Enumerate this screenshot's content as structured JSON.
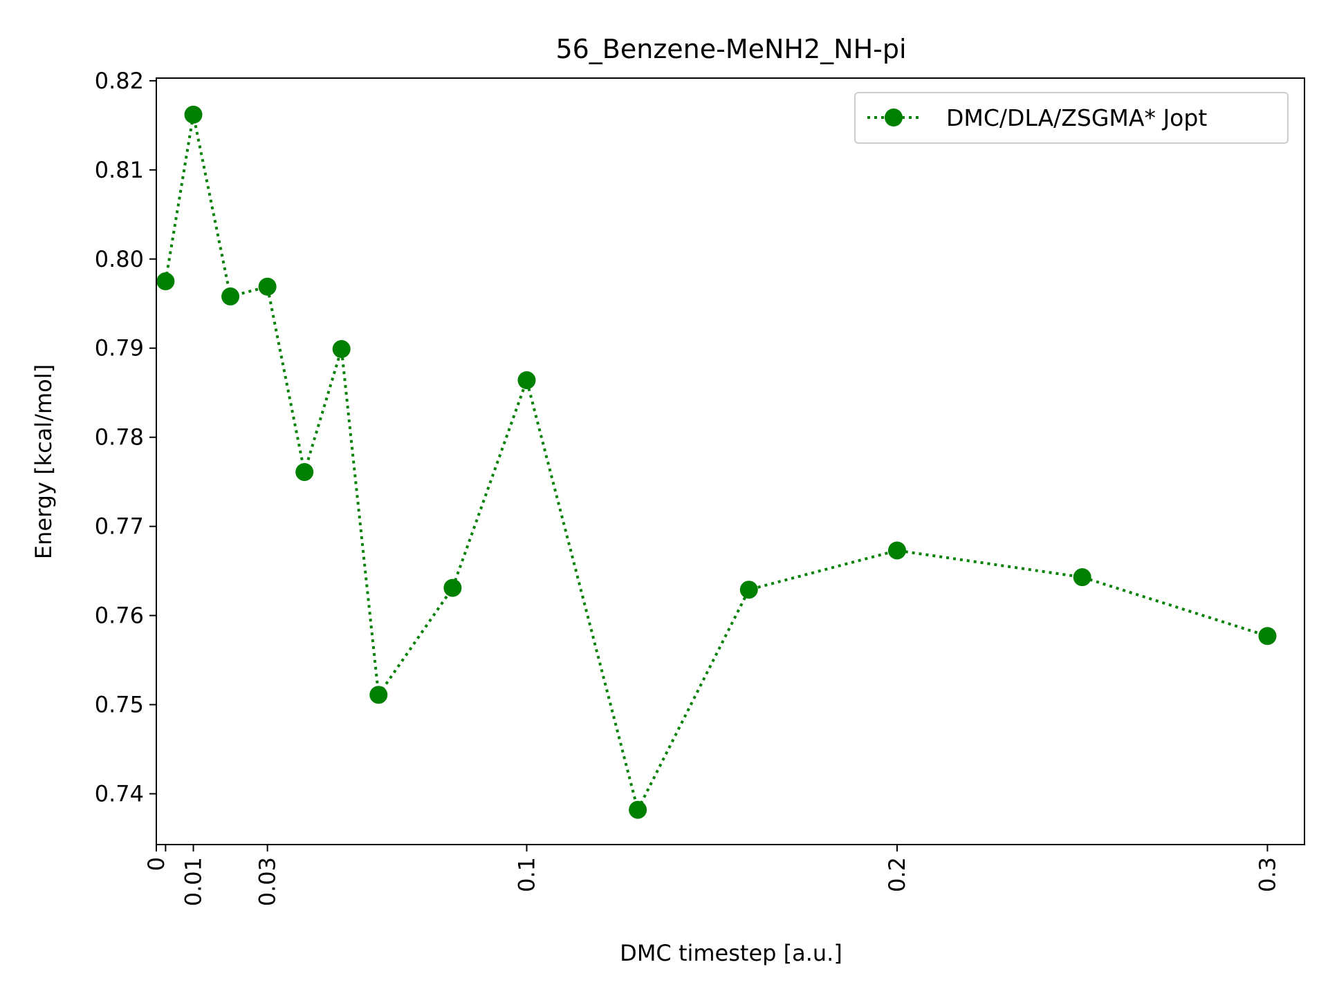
{
  "chart_data": {
    "type": "line",
    "title": "56_Benzene-MeNH2_NH-pi",
    "xlabel": "DMC timestep [a.u.]",
    "ylabel": "Energy [kcal/mol]",
    "xlim": [
      0,
      0.31
    ],
    "ylim": [
      0.7343,
      0.8203
    ],
    "x_ticks": [
      0,
      0.0025,
      0.01,
      0.03,
      0.1,
      0.2,
      0.3
    ],
    "x_tick_labels": [
      "0",
      "",
      "0.01",
      "0.03",
      "0.1",
      "0.2",
      "0.3"
    ],
    "x_tick_label_rotation": "vertical",
    "y_ticks": [
      0.74,
      0.75,
      0.76,
      0.77,
      0.78,
      0.79,
      0.8,
      0.81,
      0.82
    ],
    "y_tick_labels": [
      "0.74",
      "0.75",
      "0.76",
      "0.77",
      "0.78",
      "0.79",
      "0.80",
      "0.81",
      "0.82"
    ],
    "grid": false,
    "legend_position": "top-right",
    "series": [
      {
        "name": "DMC/DLA/ZSGMA* Jopt",
        "color": "#008000",
        "line_style": "dotted",
        "marker": "circle",
        "x": [
          0.0025,
          0.01,
          0.02,
          0.03,
          0.04,
          0.05,
          0.06,
          0.08,
          0.1,
          0.13,
          0.16,
          0.2,
          0.25,
          0.3
        ],
        "values": [
          0.7975,
          0.8162,
          0.7958,
          0.7969,
          0.7761,
          0.7899,
          0.7511,
          0.7631,
          0.7864,
          0.7382,
          0.7629,
          0.7673,
          0.7643,
          0.7577
        ]
      }
    ]
  }
}
